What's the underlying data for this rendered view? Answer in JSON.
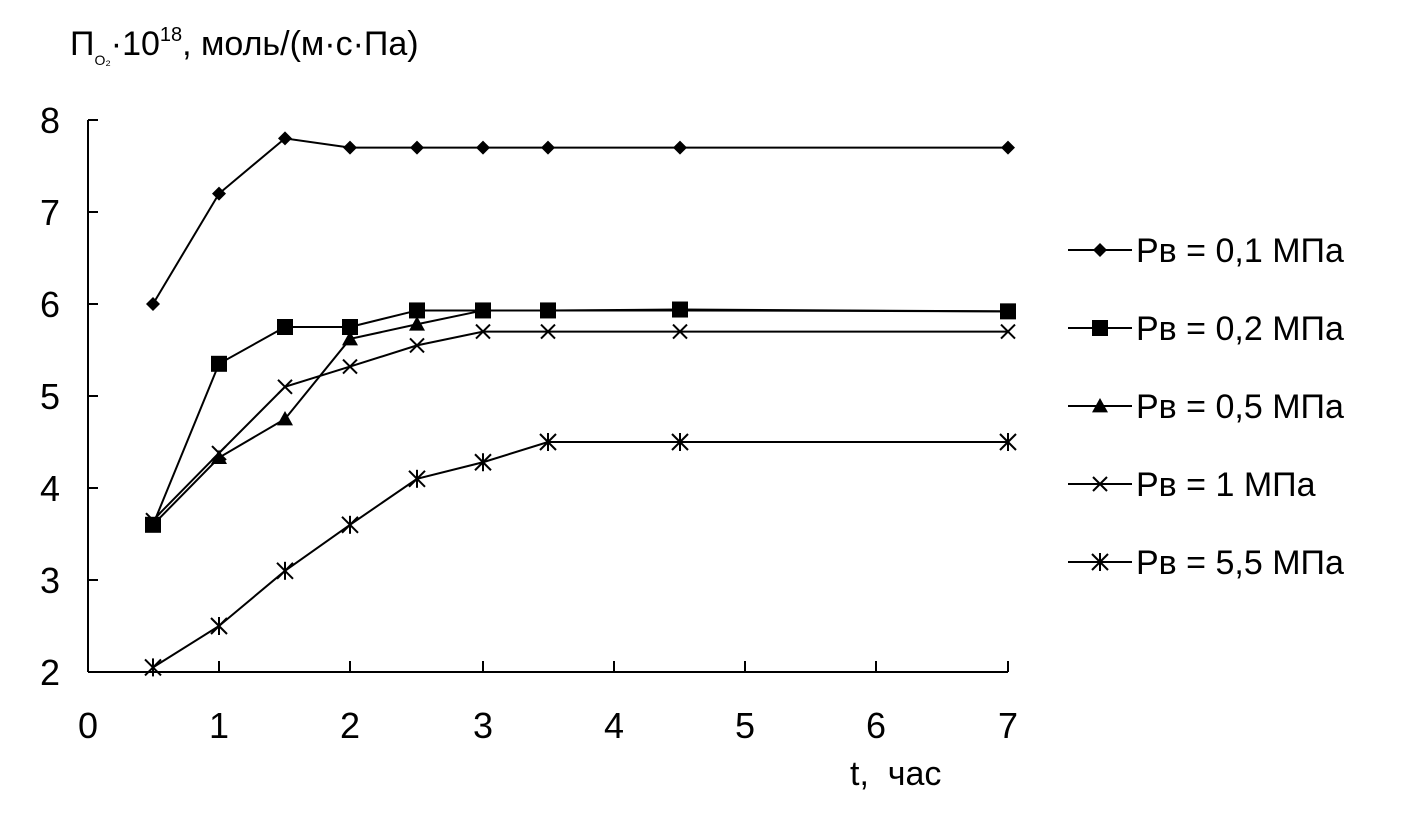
{
  "chart_data": {
    "type": "line",
    "ylabel": {
      "prefix": "П",
      "subscript": "O₂",
      "mult": "·10",
      "superscript": "18",
      "suffix": ", моль/(м·с·Па)"
    },
    "xlabel": {
      "var": "t",
      "unit": ",  час"
    },
    "x_ticks": [
      "0",
      "1",
      "2",
      "3",
      "4",
      "5",
      "6",
      "7"
    ],
    "y_ticks": [
      "2",
      "3",
      "4",
      "5",
      "6",
      "7",
      "8"
    ],
    "ylim": [
      2,
      8
    ],
    "categories": [
      "0.5",
      "1",
      "1.5",
      "2",
      "2.5",
      "3",
      "3.5",
      "4.5",
      "7"
    ],
    "series": [
      {
        "name": "Рв = 0,1 МПа",
        "marker": "diamond",
        "values": [
          6.0,
          7.2,
          7.8,
          7.7,
          7.7,
          7.7,
          7.7,
          7.7,
          7.7
        ]
      },
      {
        "name": "Рв = 0,2 МПа",
        "marker": "square",
        "values": [
          3.6,
          5.35,
          5.75,
          5.75,
          5.93,
          5.93,
          5.93,
          5.94,
          5.92
        ]
      },
      {
        "name": "Рв = 0,5 МПа",
        "marker": "triangle",
        "values": [
          3.6,
          4.33,
          4.75,
          5.62,
          5.78,
          5.93,
          5.93,
          5.93,
          5.92
        ]
      },
      {
        "name": "Рв = 1 МПа",
        "marker": "x",
        "values": [
          3.65,
          4.38,
          5.1,
          5.32,
          5.55,
          5.7,
          5.7,
          5.7,
          5.7
        ]
      },
      {
        "name": "Рв = 5,5 МПа",
        "marker": "star",
        "values": [
          2.05,
          2.5,
          3.1,
          3.6,
          4.1,
          4.28,
          4.5,
          4.5,
          4.5
        ]
      }
    ],
    "legend_position": "right",
    "grid": false,
    "line_color": "#000000"
  }
}
